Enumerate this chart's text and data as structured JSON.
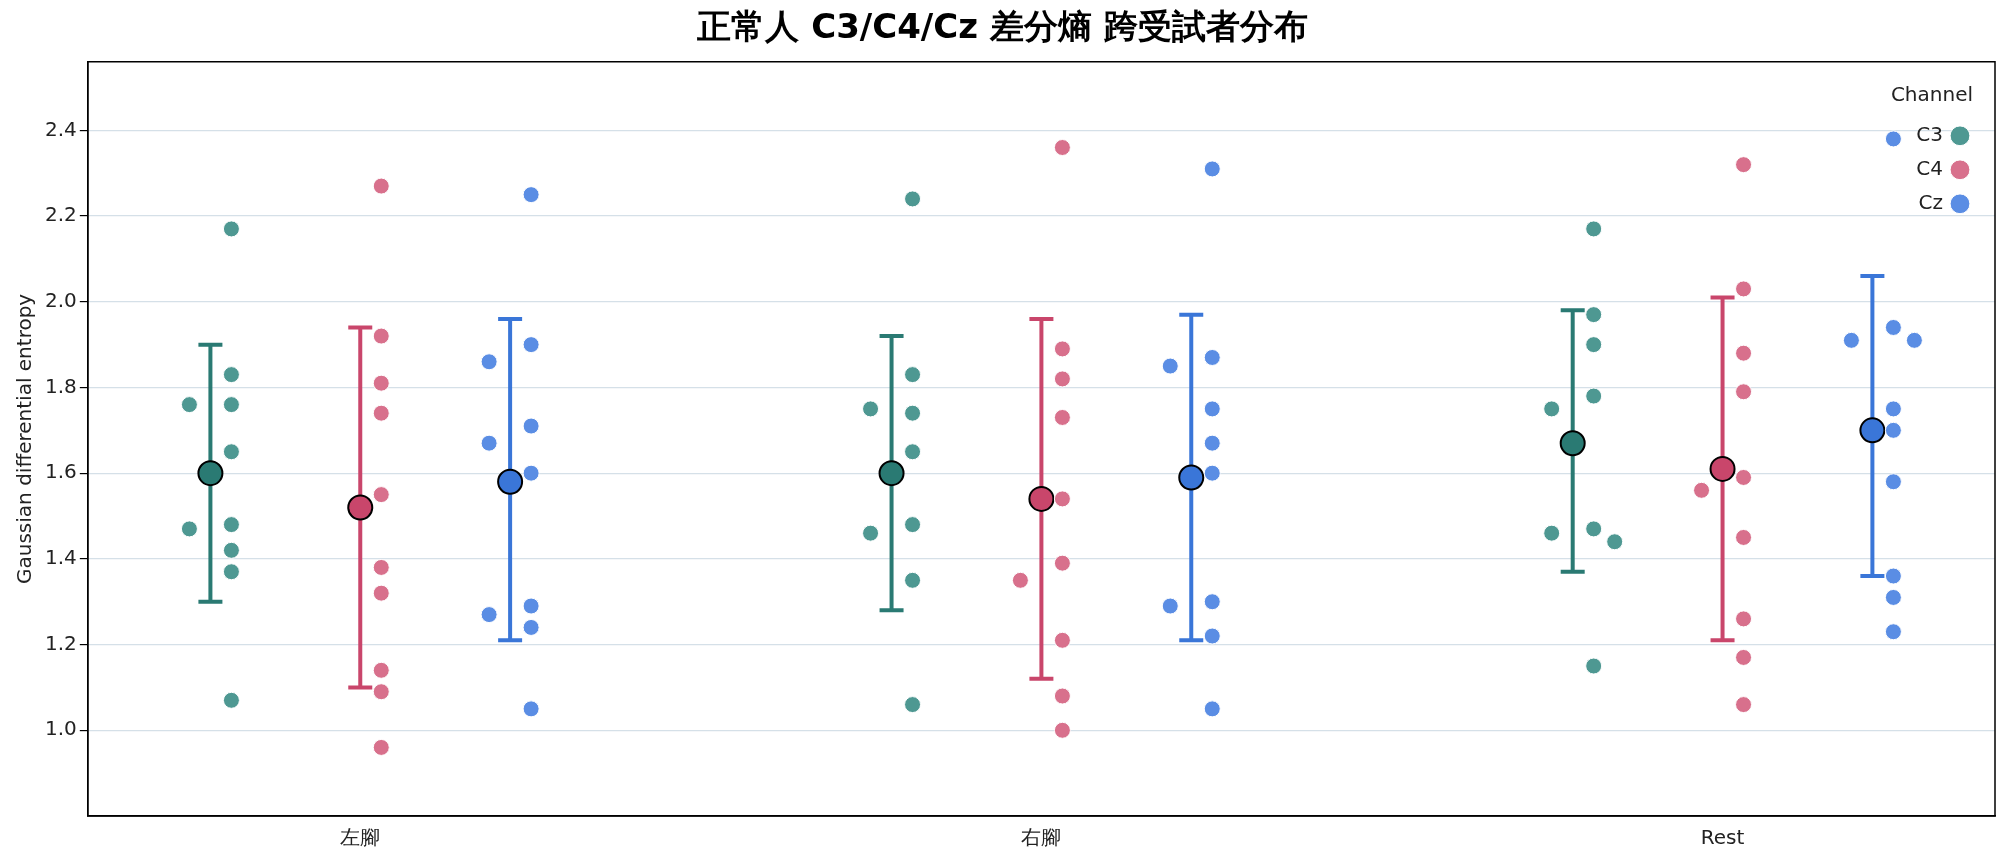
{
  "chart_data": {
    "type": "scatter",
    "title": "正常人 C3/C4/Cz 差分熵 跨受試者分布",
    "ylabel": "Gaussian differential entropy",
    "legend_title": "Channel",
    "legend": "top right",
    "grid": "y",
    "marker": "circle",
    "categories": [
      "左腳",
      "右腳",
      "Rest"
    ],
    "ylim": [
      0.8,
      2.56
    ],
    "yticks": [
      {
        "value": 1,
        "label": "1.0"
      },
      1.2,
      1.4,
      1.6,
      1.8,
      {
        "value": 2,
        "label": "2.0"
      },
      2.2,
      2.4
    ],
    "series": [
      {
        "name": "C3",
        "color": "#4e9892",
        "x": [
          "左腳",
          "左腳",
          "左腳",
          "左腳",
          "左腳",
          "左腳",
          "左腳",
          "左腳",
          "左腳",
          "左腳",
          "右腳",
          "右腳",
          "右腳",
          "右腳",
          "右腳",
          "右腳",
          "右腳",
          "右腳",
          "右腳",
          "Rest",
          "Rest",
          "Rest",
          "Rest",
          "Rest",
          "Rest",
          "Rest",
          "Rest",
          "Rest"
        ],
        "values": [
          2.17,
          1.83,
          1.76,
          1.76,
          1.65,
          1.48,
          1.47,
          1.42,
          1.37,
          1.07,
          2.24,
          1.83,
          1.74,
          1.75,
          1.65,
          1.48,
          1.46,
          1.35,
          1.06,
          2.17,
          1.97,
          1.9,
          1.78,
          1.75,
          1.47,
          1.46,
          1.44,
          1.15
        ]
      },
      {
        "name": "C4",
        "color": "#d8708c",
        "x": [
          "左腳",
          "左腳",
          "左腳",
          "左腳",
          "左腳",
          "左腳",
          "左腳",
          "左腳",
          "左腳",
          "左腳",
          "右腳",
          "右腳",
          "右腳",
          "右腳",
          "右腳",
          "右腳",
          "右腳",
          "右腳",
          "右腳",
          "右腳",
          "Rest",
          "Rest",
          "Rest",
          "Rest",
          "Rest",
          "Rest",
          "Rest",
          "Rest",
          "Rest",
          "Rest"
        ],
        "values": [
          2.27,
          1.92,
          1.81,
          1.74,
          1.55,
          1.32,
          1.38,
          1.14,
          1.09,
          0.96,
          2.36,
          1.89,
          1.82,
          1.73,
          1.54,
          1.39,
          1.35,
          1.21,
          1.08,
          1.0,
          2.32,
          2.03,
          1.88,
          1.79,
          1.59,
          1.56,
          1.45,
          1.26,
          1.17,
          1.06
        ]
      },
      {
        "name": "Cz",
        "color": "#5a8de4",
        "x": [
          "左腳",
          "左腳",
          "左腳",
          "左腳",
          "左腳",
          "左腳",
          "左腳",
          "左腳",
          "左腳",
          "左腳",
          "右腳",
          "右腳",
          "右腳",
          "右腳",
          "右腳",
          "右腳",
          "右腳",
          "右腳",
          "右腳",
          "右腳",
          "Rest",
          "Rest",
          "Rest",
          "Rest",
          "Rest",
          "Rest",
          "Rest",
          "Rest",
          "Rest",
          "Rest"
        ],
        "values": [
          2.25,
          1.9,
          1.86,
          1.71,
          1.67,
          1.6,
          1.29,
          1.27,
          1.24,
          1.05,
          2.31,
          1.87,
          1.85,
          1.67,
          1.75,
          1.6,
          1.3,
          1.29,
          1.22,
          1.05,
          2.38,
          1.94,
          1.91,
          1.91,
          1.75,
          1.7,
          1.58,
          1.36,
          1.31,
          1.23
        ]
      },
      {
        "color": "#2a7a73",
        "x": [
          "左腳",
          "右腳",
          "Rest"
        ],
        "values": [
          1.6,
          1.6,
          1.67
        ],
        "errors": [
          [
            1.3,
            1.9
          ],
          [
            1.28,
            1.92
          ],
          [
            1.37,
            1.98
          ]
        ]
      },
      {
        "color": "#c9466b",
        "x": [
          "左腳",
          "右腳",
          "Rest"
        ],
        "values": [
          1.52,
          1.54,
          1.61
        ],
        "errors": [
          [
            1.1,
            1.94
          ],
          [
            1.12,
            1.96
          ],
          [
            1.21,
            2.01
          ]
        ]
      },
      {
        "color": "#3a76d8",
        "x": [
          "左腳",
          "右腳",
          "Rest"
        ],
        "values": [
          1.58,
          1.59,
          1.7
        ],
        "errors": [
          [
            1.21,
            1.96
          ],
          [
            1.21,
            1.97
          ],
          [
            1.36,
            2.06
          ]
        ]
      }
    ]
  }
}
